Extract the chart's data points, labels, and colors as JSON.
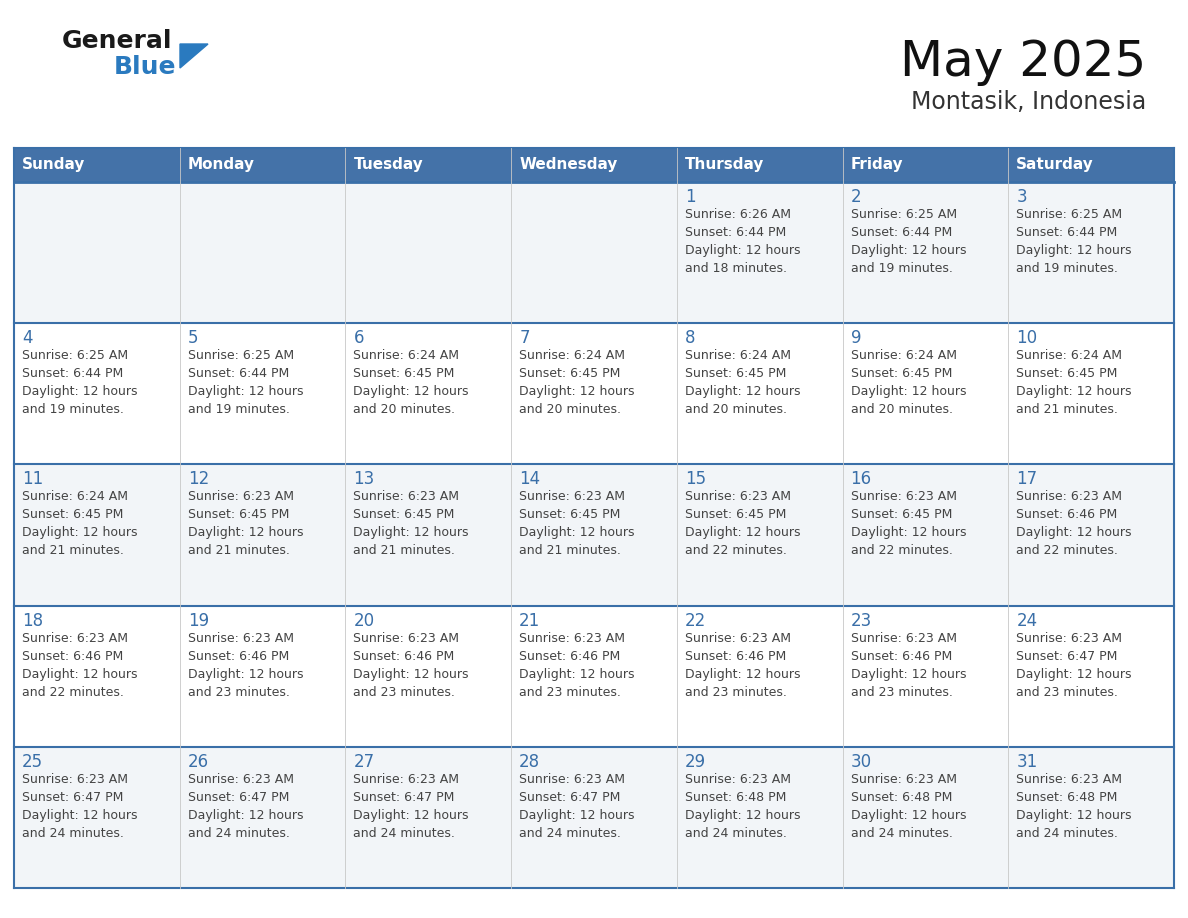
{
  "title": "May 2025",
  "subtitle": "Montasik, Indonesia",
  "days_of_week": [
    "Sunday",
    "Monday",
    "Tuesday",
    "Wednesday",
    "Thursday",
    "Friday",
    "Saturday"
  ],
  "header_bg": "#4472a8",
  "header_text": "#ffffff",
  "row_bg_odd": "#f2f5f8",
  "row_bg_even": "#ffffff",
  "day_number_color": "#3a6fa8",
  "cell_text_color": "#444444",
  "divider_color": "#3a6fa8",
  "border_color": "#3a6fa8",
  "logo_general_color": "#1a1a1a",
  "logo_blue_color": "#2a7abf",
  "logo_triangle_color": "#2a7abf",
  "calendar_data": [
    [
      {
        "day": null,
        "sunrise": null,
        "sunset": null,
        "daylight_line1": null,
        "daylight_line2": null
      },
      {
        "day": null,
        "sunrise": null,
        "sunset": null,
        "daylight_line1": null,
        "daylight_line2": null
      },
      {
        "day": null,
        "sunrise": null,
        "sunset": null,
        "daylight_line1": null,
        "daylight_line2": null
      },
      {
        "day": null,
        "sunrise": null,
        "sunset": null,
        "daylight_line1": null,
        "daylight_line2": null
      },
      {
        "day": 1,
        "sunrise": "Sunrise: 6:26 AM",
        "sunset": "Sunset: 6:44 PM",
        "daylight_line1": "Daylight: 12 hours",
        "daylight_line2": "and 18 minutes."
      },
      {
        "day": 2,
        "sunrise": "Sunrise: 6:25 AM",
        "sunset": "Sunset: 6:44 PM",
        "daylight_line1": "Daylight: 12 hours",
        "daylight_line2": "and 19 minutes."
      },
      {
        "day": 3,
        "sunrise": "Sunrise: 6:25 AM",
        "sunset": "Sunset: 6:44 PM",
        "daylight_line1": "Daylight: 12 hours",
        "daylight_line2": "and 19 minutes."
      }
    ],
    [
      {
        "day": 4,
        "sunrise": "Sunrise: 6:25 AM",
        "sunset": "Sunset: 6:44 PM",
        "daylight_line1": "Daylight: 12 hours",
        "daylight_line2": "and 19 minutes."
      },
      {
        "day": 5,
        "sunrise": "Sunrise: 6:25 AM",
        "sunset": "Sunset: 6:44 PM",
        "daylight_line1": "Daylight: 12 hours",
        "daylight_line2": "and 19 minutes."
      },
      {
        "day": 6,
        "sunrise": "Sunrise: 6:24 AM",
        "sunset": "Sunset: 6:45 PM",
        "daylight_line1": "Daylight: 12 hours",
        "daylight_line2": "and 20 minutes."
      },
      {
        "day": 7,
        "sunrise": "Sunrise: 6:24 AM",
        "sunset": "Sunset: 6:45 PM",
        "daylight_line1": "Daylight: 12 hours",
        "daylight_line2": "and 20 minutes."
      },
      {
        "day": 8,
        "sunrise": "Sunrise: 6:24 AM",
        "sunset": "Sunset: 6:45 PM",
        "daylight_line1": "Daylight: 12 hours",
        "daylight_line2": "and 20 minutes."
      },
      {
        "day": 9,
        "sunrise": "Sunrise: 6:24 AM",
        "sunset": "Sunset: 6:45 PM",
        "daylight_line1": "Daylight: 12 hours",
        "daylight_line2": "and 20 minutes."
      },
      {
        "day": 10,
        "sunrise": "Sunrise: 6:24 AM",
        "sunset": "Sunset: 6:45 PM",
        "daylight_line1": "Daylight: 12 hours",
        "daylight_line2": "and 21 minutes."
      }
    ],
    [
      {
        "day": 11,
        "sunrise": "Sunrise: 6:24 AM",
        "sunset": "Sunset: 6:45 PM",
        "daylight_line1": "Daylight: 12 hours",
        "daylight_line2": "and 21 minutes."
      },
      {
        "day": 12,
        "sunrise": "Sunrise: 6:23 AM",
        "sunset": "Sunset: 6:45 PM",
        "daylight_line1": "Daylight: 12 hours",
        "daylight_line2": "and 21 minutes."
      },
      {
        "day": 13,
        "sunrise": "Sunrise: 6:23 AM",
        "sunset": "Sunset: 6:45 PM",
        "daylight_line1": "Daylight: 12 hours",
        "daylight_line2": "and 21 minutes."
      },
      {
        "day": 14,
        "sunrise": "Sunrise: 6:23 AM",
        "sunset": "Sunset: 6:45 PM",
        "daylight_line1": "Daylight: 12 hours",
        "daylight_line2": "and 21 minutes."
      },
      {
        "day": 15,
        "sunrise": "Sunrise: 6:23 AM",
        "sunset": "Sunset: 6:45 PM",
        "daylight_line1": "Daylight: 12 hours",
        "daylight_line2": "and 22 minutes."
      },
      {
        "day": 16,
        "sunrise": "Sunrise: 6:23 AM",
        "sunset": "Sunset: 6:45 PM",
        "daylight_line1": "Daylight: 12 hours",
        "daylight_line2": "and 22 minutes."
      },
      {
        "day": 17,
        "sunrise": "Sunrise: 6:23 AM",
        "sunset": "Sunset: 6:46 PM",
        "daylight_line1": "Daylight: 12 hours",
        "daylight_line2": "and 22 minutes."
      }
    ],
    [
      {
        "day": 18,
        "sunrise": "Sunrise: 6:23 AM",
        "sunset": "Sunset: 6:46 PM",
        "daylight_line1": "Daylight: 12 hours",
        "daylight_line2": "and 22 minutes."
      },
      {
        "day": 19,
        "sunrise": "Sunrise: 6:23 AM",
        "sunset": "Sunset: 6:46 PM",
        "daylight_line1": "Daylight: 12 hours",
        "daylight_line2": "and 23 minutes."
      },
      {
        "day": 20,
        "sunrise": "Sunrise: 6:23 AM",
        "sunset": "Sunset: 6:46 PM",
        "daylight_line1": "Daylight: 12 hours",
        "daylight_line2": "and 23 minutes."
      },
      {
        "day": 21,
        "sunrise": "Sunrise: 6:23 AM",
        "sunset": "Sunset: 6:46 PM",
        "daylight_line1": "Daylight: 12 hours",
        "daylight_line2": "and 23 minutes."
      },
      {
        "day": 22,
        "sunrise": "Sunrise: 6:23 AM",
        "sunset": "Sunset: 6:46 PM",
        "daylight_line1": "Daylight: 12 hours",
        "daylight_line2": "and 23 minutes."
      },
      {
        "day": 23,
        "sunrise": "Sunrise: 6:23 AM",
        "sunset": "Sunset: 6:46 PM",
        "daylight_line1": "Daylight: 12 hours",
        "daylight_line2": "and 23 minutes."
      },
      {
        "day": 24,
        "sunrise": "Sunrise: 6:23 AM",
        "sunset": "Sunset: 6:47 PM",
        "daylight_line1": "Daylight: 12 hours",
        "daylight_line2": "and 23 minutes."
      }
    ],
    [
      {
        "day": 25,
        "sunrise": "Sunrise: 6:23 AM",
        "sunset": "Sunset: 6:47 PM",
        "daylight_line1": "Daylight: 12 hours",
        "daylight_line2": "and 24 minutes."
      },
      {
        "day": 26,
        "sunrise": "Sunrise: 6:23 AM",
        "sunset": "Sunset: 6:47 PM",
        "daylight_line1": "Daylight: 12 hours",
        "daylight_line2": "and 24 minutes."
      },
      {
        "day": 27,
        "sunrise": "Sunrise: 6:23 AM",
        "sunset": "Sunset: 6:47 PM",
        "daylight_line1": "Daylight: 12 hours",
        "daylight_line2": "and 24 minutes."
      },
      {
        "day": 28,
        "sunrise": "Sunrise: 6:23 AM",
        "sunset": "Sunset: 6:47 PM",
        "daylight_line1": "Daylight: 12 hours",
        "daylight_line2": "and 24 minutes."
      },
      {
        "day": 29,
        "sunrise": "Sunrise: 6:23 AM",
        "sunset": "Sunset: 6:48 PM",
        "daylight_line1": "Daylight: 12 hours",
        "daylight_line2": "and 24 minutes."
      },
      {
        "day": 30,
        "sunrise": "Sunrise: 6:23 AM",
        "sunset": "Sunset: 6:48 PM",
        "daylight_line1": "Daylight: 12 hours",
        "daylight_line2": "and 24 minutes."
      },
      {
        "day": 31,
        "sunrise": "Sunrise: 6:23 AM",
        "sunset": "Sunset: 6:48 PM",
        "daylight_line1": "Daylight: 12 hours",
        "daylight_line2": "and 24 minutes."
      }
    ]
  ]
}
